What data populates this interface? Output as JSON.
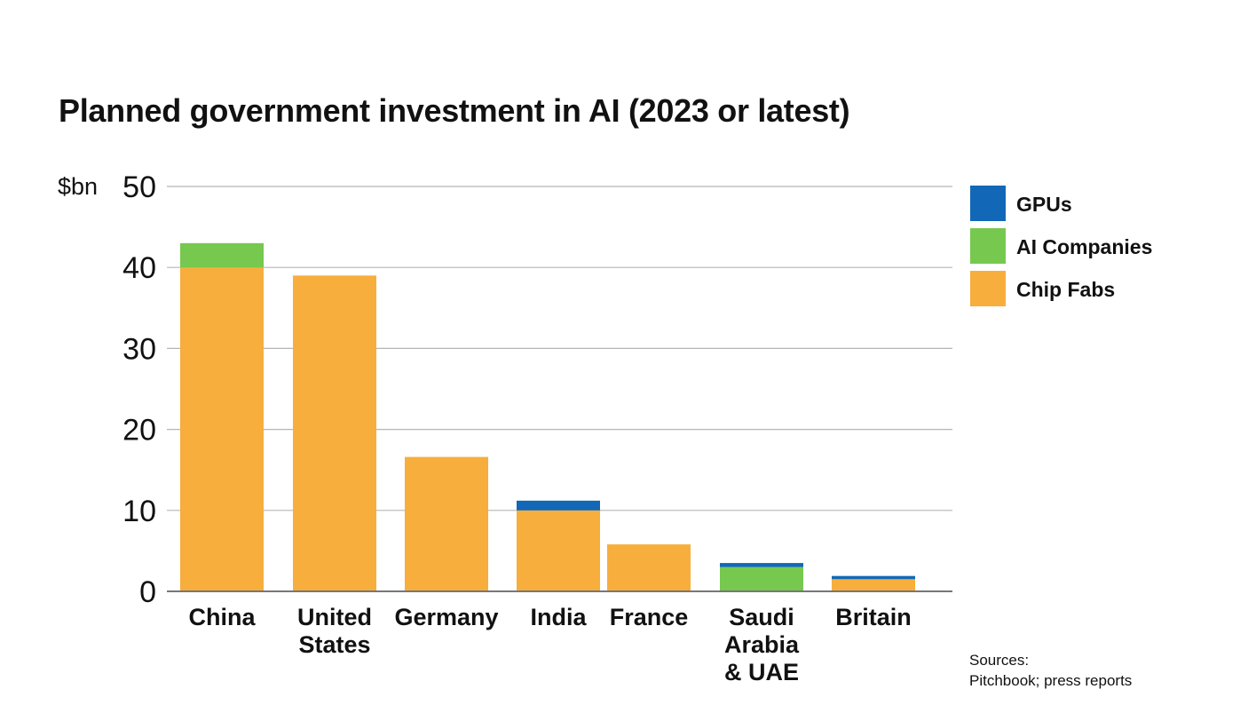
{
  "chart_data": {
    "type": "bar",
    "stacked": true,
    "title": "Planned government investment in AI (2023 or latest)",
    "ylabel": "$bn",
    "xlabel": "",
    "ylim": [
      0,
      50
    ],
    "yticks": [
      0,
      10,
      20,
      30,
      40,
      50
    ],
    "grid": true,
    "legend_position": "right",
    "categories": [
      [
        "China"
      ],
      [
        "United",
        "States"
      ],
      [
        "Germany"
      ],
      [
        "India"
      ],
      [
        "France"
      ],
      [
        "Saudi",
        "Arabia",
        "& UAE"
      ],
      [
        "Britain"
      ]
    ],
    "series": [
      {
        "name": "Chip Fabs",
        "color": "#F7AE3C",
        "values": [
          40,
          39,
          16.6,
          10,
          5.8,
          0,
          1.5
        ]
      },
      {
        "name": "AI Companies",
        "color": "#77C84E",
        "values": [
          3,
          0,
          0,
          0,
          0,
          3,
          0
        ]
      },
      {
        "name": "GPUs",
        "color": "#1268B6",
        "values": [
          0,
          0,
          0,
          1.2,
          0,
          0.5,
          0.4
        ]
      }
    ],
    "legend_order": [
      "GPUs",
      "AI Companies",
      "Chip Fabs"
    ],
    "source": [
      "Sources:",
      "Pitchbook; press reports"
    ]
  },
  "colors": {
    "grid": "#B5B5B5",
    "axis": "#777777",
    "text": "#111111"
  }
}
